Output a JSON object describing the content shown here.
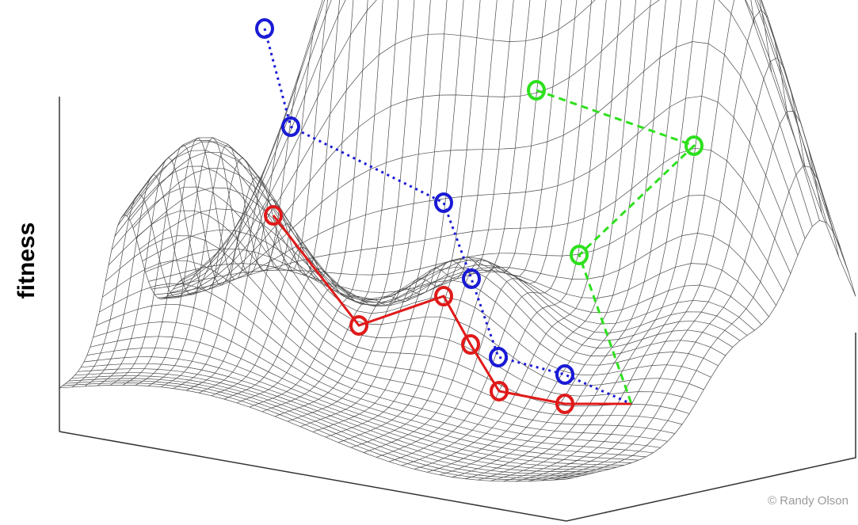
{
  "figure": {
    "axis_label": "fitness",
    "credit": "© Randy Olson"
  },
  "colors": {
    "mesh": "#4a4a4a",
    "axis": "#333333",
    "blue_path": "#1a1ad6",
    "red_path": "#e01a1a",
    "green_path": "#2ee01e"
  },
  "paths": [
    {
      "color_key": "blue_path",
      "line": "dotted",
      "points": 7,
      "connected_to_start": true
    },
    {
      "color_key": "red_path",
      "line": "solid",
      "points": 6,
      "connected_to_start": true
    },
    {
      "color_key": "green_path",
      "line": "dashed",
      "points": 3,
      "connected_to_start": true
    }
  ]
}
